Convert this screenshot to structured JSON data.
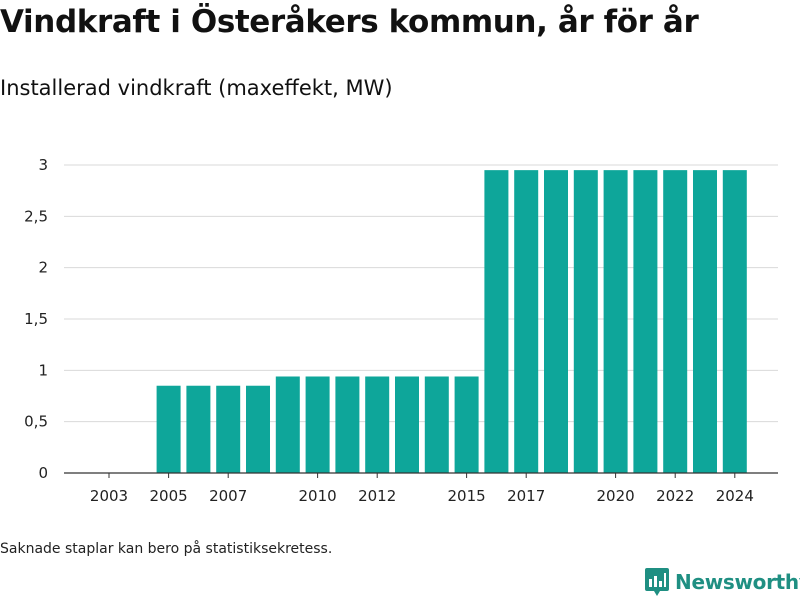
{
  "title": "Vindkraft i Österåkers kommun, år för år",
  "subtitle": "Installerad vindkraft (maxeffekt, MW)",
  "footnote": "Saknade staplar kan bero på statistiksekretess.",
  "brand": {
    "name": "Newsworthy",
    "icon": "newsworthy-logo-icon"
  },
  "colors": {
    "bar": "#0ea69a",
    "grid": "#d9d9d9",
    "axis": "#333333",
    "brand": "#1f8f82"
  },
  "chart_data": {
    "type": "bar",
    "title": "Vindkraft i Österåkers kommun, år för år",
    "ylabel": "Installerad vindkraft (maxeffekt, MW)",
    "xlabel": "",
    "categories": [
      "2003",
      "2004",
      "2005",
      "2006",
      "2007",
      "2008",
      "2009",
      "2010",
      "2011",
      "2012",
      "2013",
      "2014",
      "2015",
      "2016",
      "2017",
      "2018",
      "2019",
      "2020",
      "2021",
      "2022",
      "2023",
      "2024"
    ],
    "values": [
      null,
      null,
      0.85,
      0.85,
      0.85,
      0.85,
      0.94,
      0.94,
      0.94,
      0.94,
      0.94,
      0.94,
      0.94,
      2.95,
      2.95,
      2.95,
      2.95,
      2.95,
      2.95,
      2.95,
      2.95,
      2.95
    ],
    "x_tick_labels": [
      "2003",
      "2005",
      "2007",
      "2010",
      "2012",
      "2015",
      "2017",
      "2020",
      "2022",
      "2024"
    ],
    "y_ticks": [
      0,
      0.5,
      1,
      1.5,
      2,
      2.5,
      3
    ],
    "y_tick_labels": [
      "0",
      "0,5",
      "1",
      "1,5",
      "2",
      "2,5",
      "3"
    ],
    "ylim": [
      0,
      3
    ],
    "grid": true,
    "legend": "none"
  }
}
